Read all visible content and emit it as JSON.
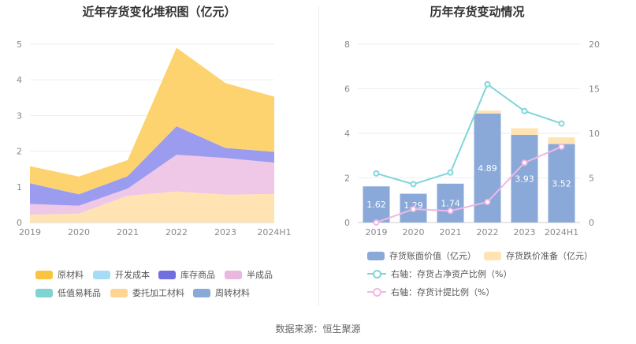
{
  "source_text": "数据来源：恒生聚源",
  "chart_data": [
    {
      "type": "area",
      "title": "近年存货变化堆积图（亿元）",
      "stacked": true,
      "categories": [
        "2019",
        "2020",
        "2021",
        "2022",
        "2023",
        "2024H1"
      ],
      "yticks": [
        "0",
        "1",
        "2",
        "3",
        "4",
        "5"
      ],
      "ylim": [
        0,
        5
      ],
      "grid": true,
      "legend_position": "bottom",
      "series": [
        {
          "name": "周转材料",
          "color": "#8aa9d8",
          "values": [
            0,
            0,
            0,
            0,
            0,
            0
          ]
        },
        {
          "name": "委托加工材料",
          "color": "#ffe3b3",
          "values": [
            0.22,
            0.25,
            0.75,
            0.87,
            0.78,
            0.8
          ]
        },
        {
          "name": "低值易耗品",
          "color": "#7fd3d3",
          "values": [
            0,
            0,
            0,
            0,
            0,
            0
          ]
        },
        {
          "name": "半成品",
          "color": "#eec8e6",
          "values": [
            0.3,
            0.22,
            0.2,
            1.03,
            1.03,
            0.88
          ]
        },
        {
          "name": "库存商品",
          "color": "#9b9cf0",
          "values": [
            0.58,
            0.32,
            0.35,
            0.8,
            0.28,
            0.3
          ]
        },
        {
          "name": "开发成本",
          "color": "#a6dcf7",
          "values": [
            0,
            0,
            0,
            0,
            0,
            0
          ]
        },
        {
          "name": "原材料",
          "color": "#fcd36e",
          "values": [
            0.48,
            0.5,
            0.45,
            2.2,
            1.82,
            1.55
          ]
        }
      ],
      "legend_order": [
        "原材料",
        "开发成本",
        "库存商品",
        "半成品",
        "低值易耗品",
        "委托加工材料",
        "周转材料"
      ],
      "legend_colors": [
        "#f9c440",
        "#a6dcf7",
        "#6f6fe0",
        "#e8b8de",
        "#7fd3d3",
        "#ffd591",
        "#8aa9d8"
      ]
    },
    {
      "type": "bar",
      "title": "历年存货变动情况",
      "stacked": true,
      "categories": [
        "2019",
        "2020",
        "2021",
        "2022",
        "2023",
        "2024H1"
      ],
      "yticks_left": [
        "0",
        "2",
        "4",
        "6",
        "8"
      ],
      "yticks_right": [
        "0",
        "5",
        "10",
        "15",
        "20"
      ],
      "ylim_left": [
        0,
        8
      ],
      "ylim_right": [
        0,
        20
      ],
      "grid": true,
      "legend_position": "bottom",
      "series": [
        {
          "name": "存货账面价值（亿元）",
          "color": "#8aa9d8",
          "axis": "left",
          "values": [
            1.62,
            1.29,
            1.74,
            4.89,
            3.93,
            3.52
          ],
          "labels": [
            "1.62",
            "1.29",
            "1.74",
            "4.89",
            "3.93",
            "3.52"
          ]
        },
        {
          "name": "存货跌价准备（亿元）",
          "color": "#ffe3b3",
          "axis": "left",
          "values": [
            0,
            0,
            0.02,
            0.13,
            0.3,
            0.3
          ]
        },
        {
          "name": "右轴：存货占净资产比例（%）",
          "color": "#80d5d9",
          "type": "line",
          "axis": "right",
          "values": [
            5.5,
            4.3,
            5.6,
            15.5,
            12.5,
            11.1
          ]
        },
        {
          "name": "右轴：存货计提比例（%）",
          "color": "#f0b8e4",
          "type": "line",
          "axis": "right",
          "values": [
            0,
            1.5,
            1.3,
            2.3,
            6.7,
            8.5
          ]
        }
      ]
    }
  ]
}
